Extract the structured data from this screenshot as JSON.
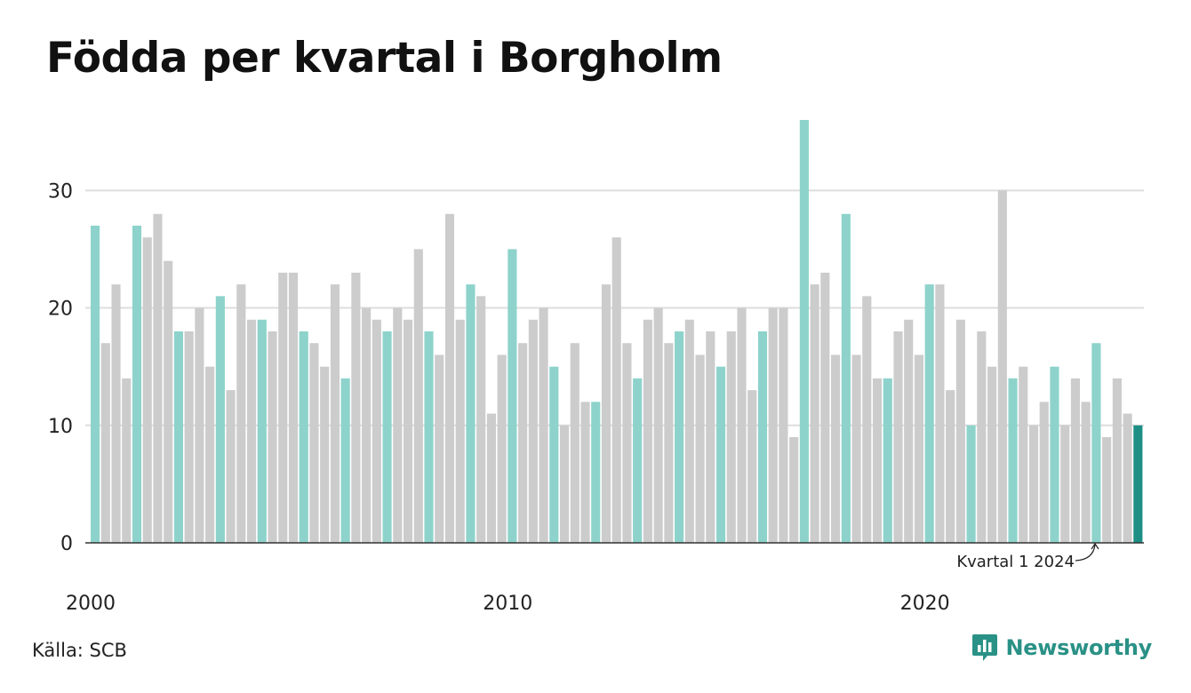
{
  "title": "Födda per kvartal i Borgholm",
  "source": "Källa: SCB",
  "brand": {
    "name": "Newsworthy",
    "icon": "newsworthy-logo-icon"
  },
  "colors": {
    "q1": "#8dd3cb",
    "other": "#cccccc",
    "latest": "#1e8f84",
    "grid": "#dddddd",
    "axis": "#333333"
  },
  "chart_data": {
    "type": "bar",
    "title": "Födda per kvartal i Borgholm",
    "xlabel": "",
    "ylabel": "",
    "ylim": [
      0,
      36
    ],
    "yticks": [
      0,
      10,
      20,
      30
    ],
    "xticks": [
      "2000",
      "2010",
      "2020"
    ],
    "grid": true,
    "start": "2000 Q1",
    "values": [
      27,
      17,
      22,
      14,
      27,
      26,
      28,
      24,
      18,
      18,
      20,
      15,
      21,
      13,
      22,
      19,
      19,
      18,
      23,
      23,
      18,
      17,
      15,
      22,
      14,
      23,
      20,
      19,
      18,
      20,
      19,
      25,
      18,
      16,
      28,
      19,
      22,
      21,
      11,
      16,
      25,
      17,
      19,
      20,
      15,
      10,
      17,
      12,
      12,
      22,
      26,
      17,
      14,
      19,
      20,
      17,
      18,
      19,
      16,
      18,
      15,
      18,
      20,
      13,
      18,
      20,
      20,
      9,
      36,
      22,
      23,
      16,
      28,
      16,
      21,
      14,
      14,
      18,
      19,
      16,
      22,
      22,
      13,
      19,
      10,
      18,
      15,
      30,
      14,
      15,
      10,
      12,
      15,
      10,
      14,
      12,
      17,
      9,
      14,
      11,
      10
    ],
    "annotation": "Kvartal 1 2024"
  }
}
